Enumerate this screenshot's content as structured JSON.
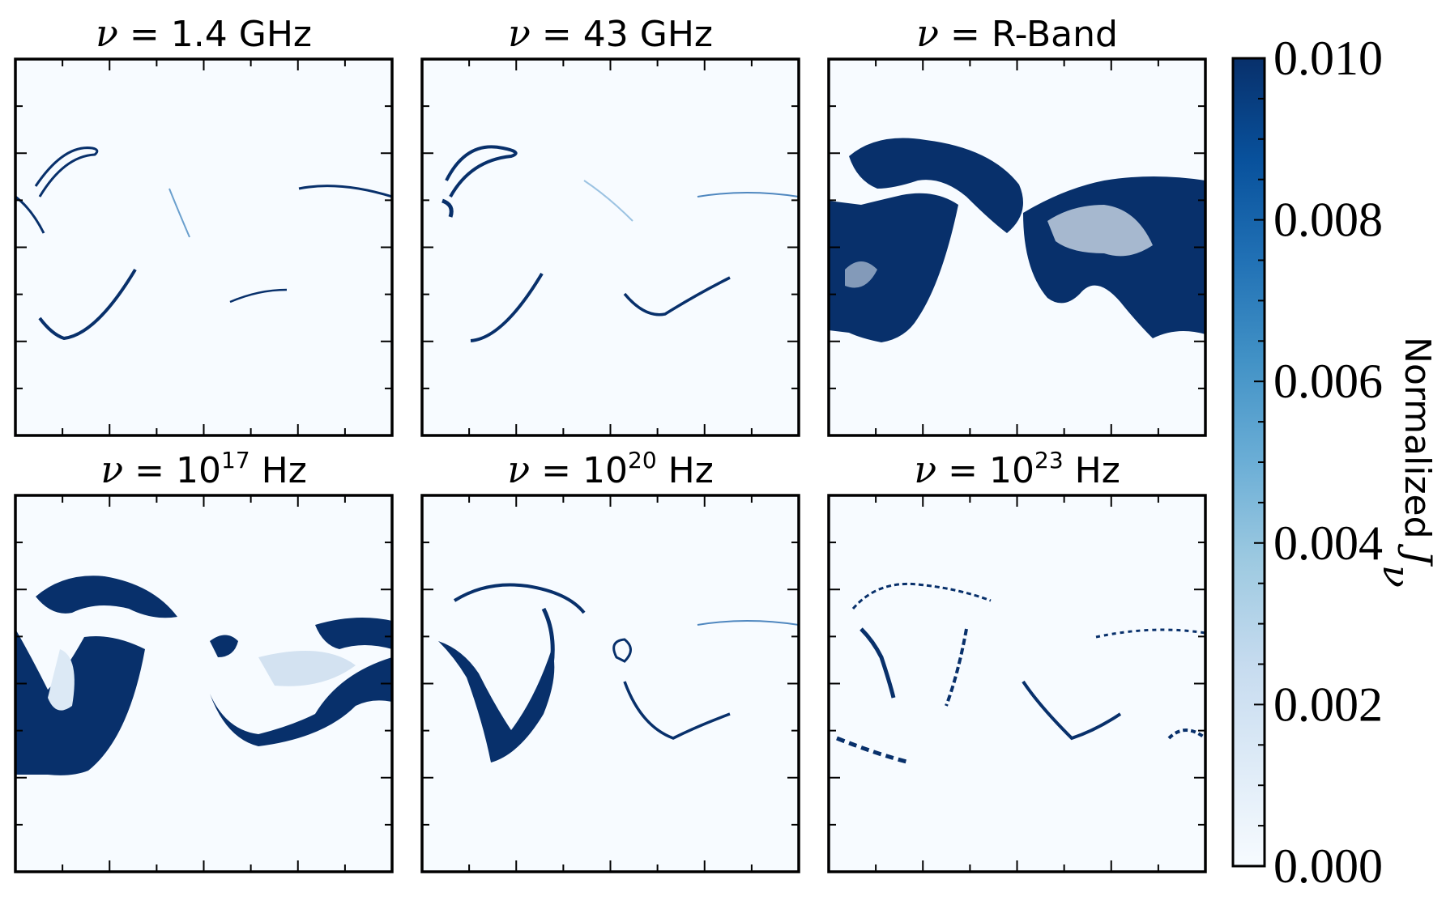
{
  "panels": [
    {
      "id": "1p4ghz",
      "title_symbol": "ν",
      "title_eq": " = ",
      "title_base": "1.4 GHz",
      "title_exp": "",
      "title_unit": ""
    },
    {
      "id": "43ghz",
      "title_symbol": "ν",
      "title_eq": " = ",
      "title_base": "43 GHz",
      "title_exp": "",
      "title_unit": ""
    },
    {
      "id": "rband",
      "title_symbol": "ν",
      "title_eq": " = ",
      "title_base": "R-Band",
      "title_exp": "",
      "title_unit": ""
    },
    {
      "id": "1e17hz",
      "title_symbol": "ν",
      "title_eq": " = ",
      "title_base": "10",
      "title_exp": "17",
      "title_unit": " Hz"
    },
    {
      "id": "1e20hz",
      "title_symbol": "ν",
      "title_eq": " = ",
      "title_base": "10",
      "title_exp": "20",
      "title_unit": " Hz"
    },
    {
      "id": "1e23hz",
      "title_symbol": "ν",
      "title_eq": " = ",
      "title_base": "10",
      "title_exp": "23",
      "title_unit": " Hz"
    }
  ],
  "colorbar": {
    "label_text": "Normalized ",
    "label_symbol": "J",
    "label_subscript": "ν",
    "range": [
      0.0,
      0.01
    ],
    "ticks": [
      "0.000",
      "0.002",
      "0.004",
      "0.006",
      "0.008",
      "0.010"
    ],
    "colormap": "Blues",
    "color_low": "#f7fbff",
    "color_high": "#08306b"
  },
  "chart_data": {
    "type": "heatmap",
    "colormap": "Blues",
    "value_range": [
      0.0,
      0.01
    ],
    "panel_titles": [
      "ν = 1.4 GHz",
      "ν = 43 GHz",
      "ν = R-Band",
      "ν = 10^17 Hz",
      "ν = 10^20 Hz",
      "ν = 10^23 Hz"
    ],
    "colorbar_ticks": [
      0.0,
      0.002,
      0.004,
      0.006,
      0.008,
      0.01
    ],
    "colorbar_label": "Normalized J_ν",
    "axes_tick_labels_shown": false
  }
}
